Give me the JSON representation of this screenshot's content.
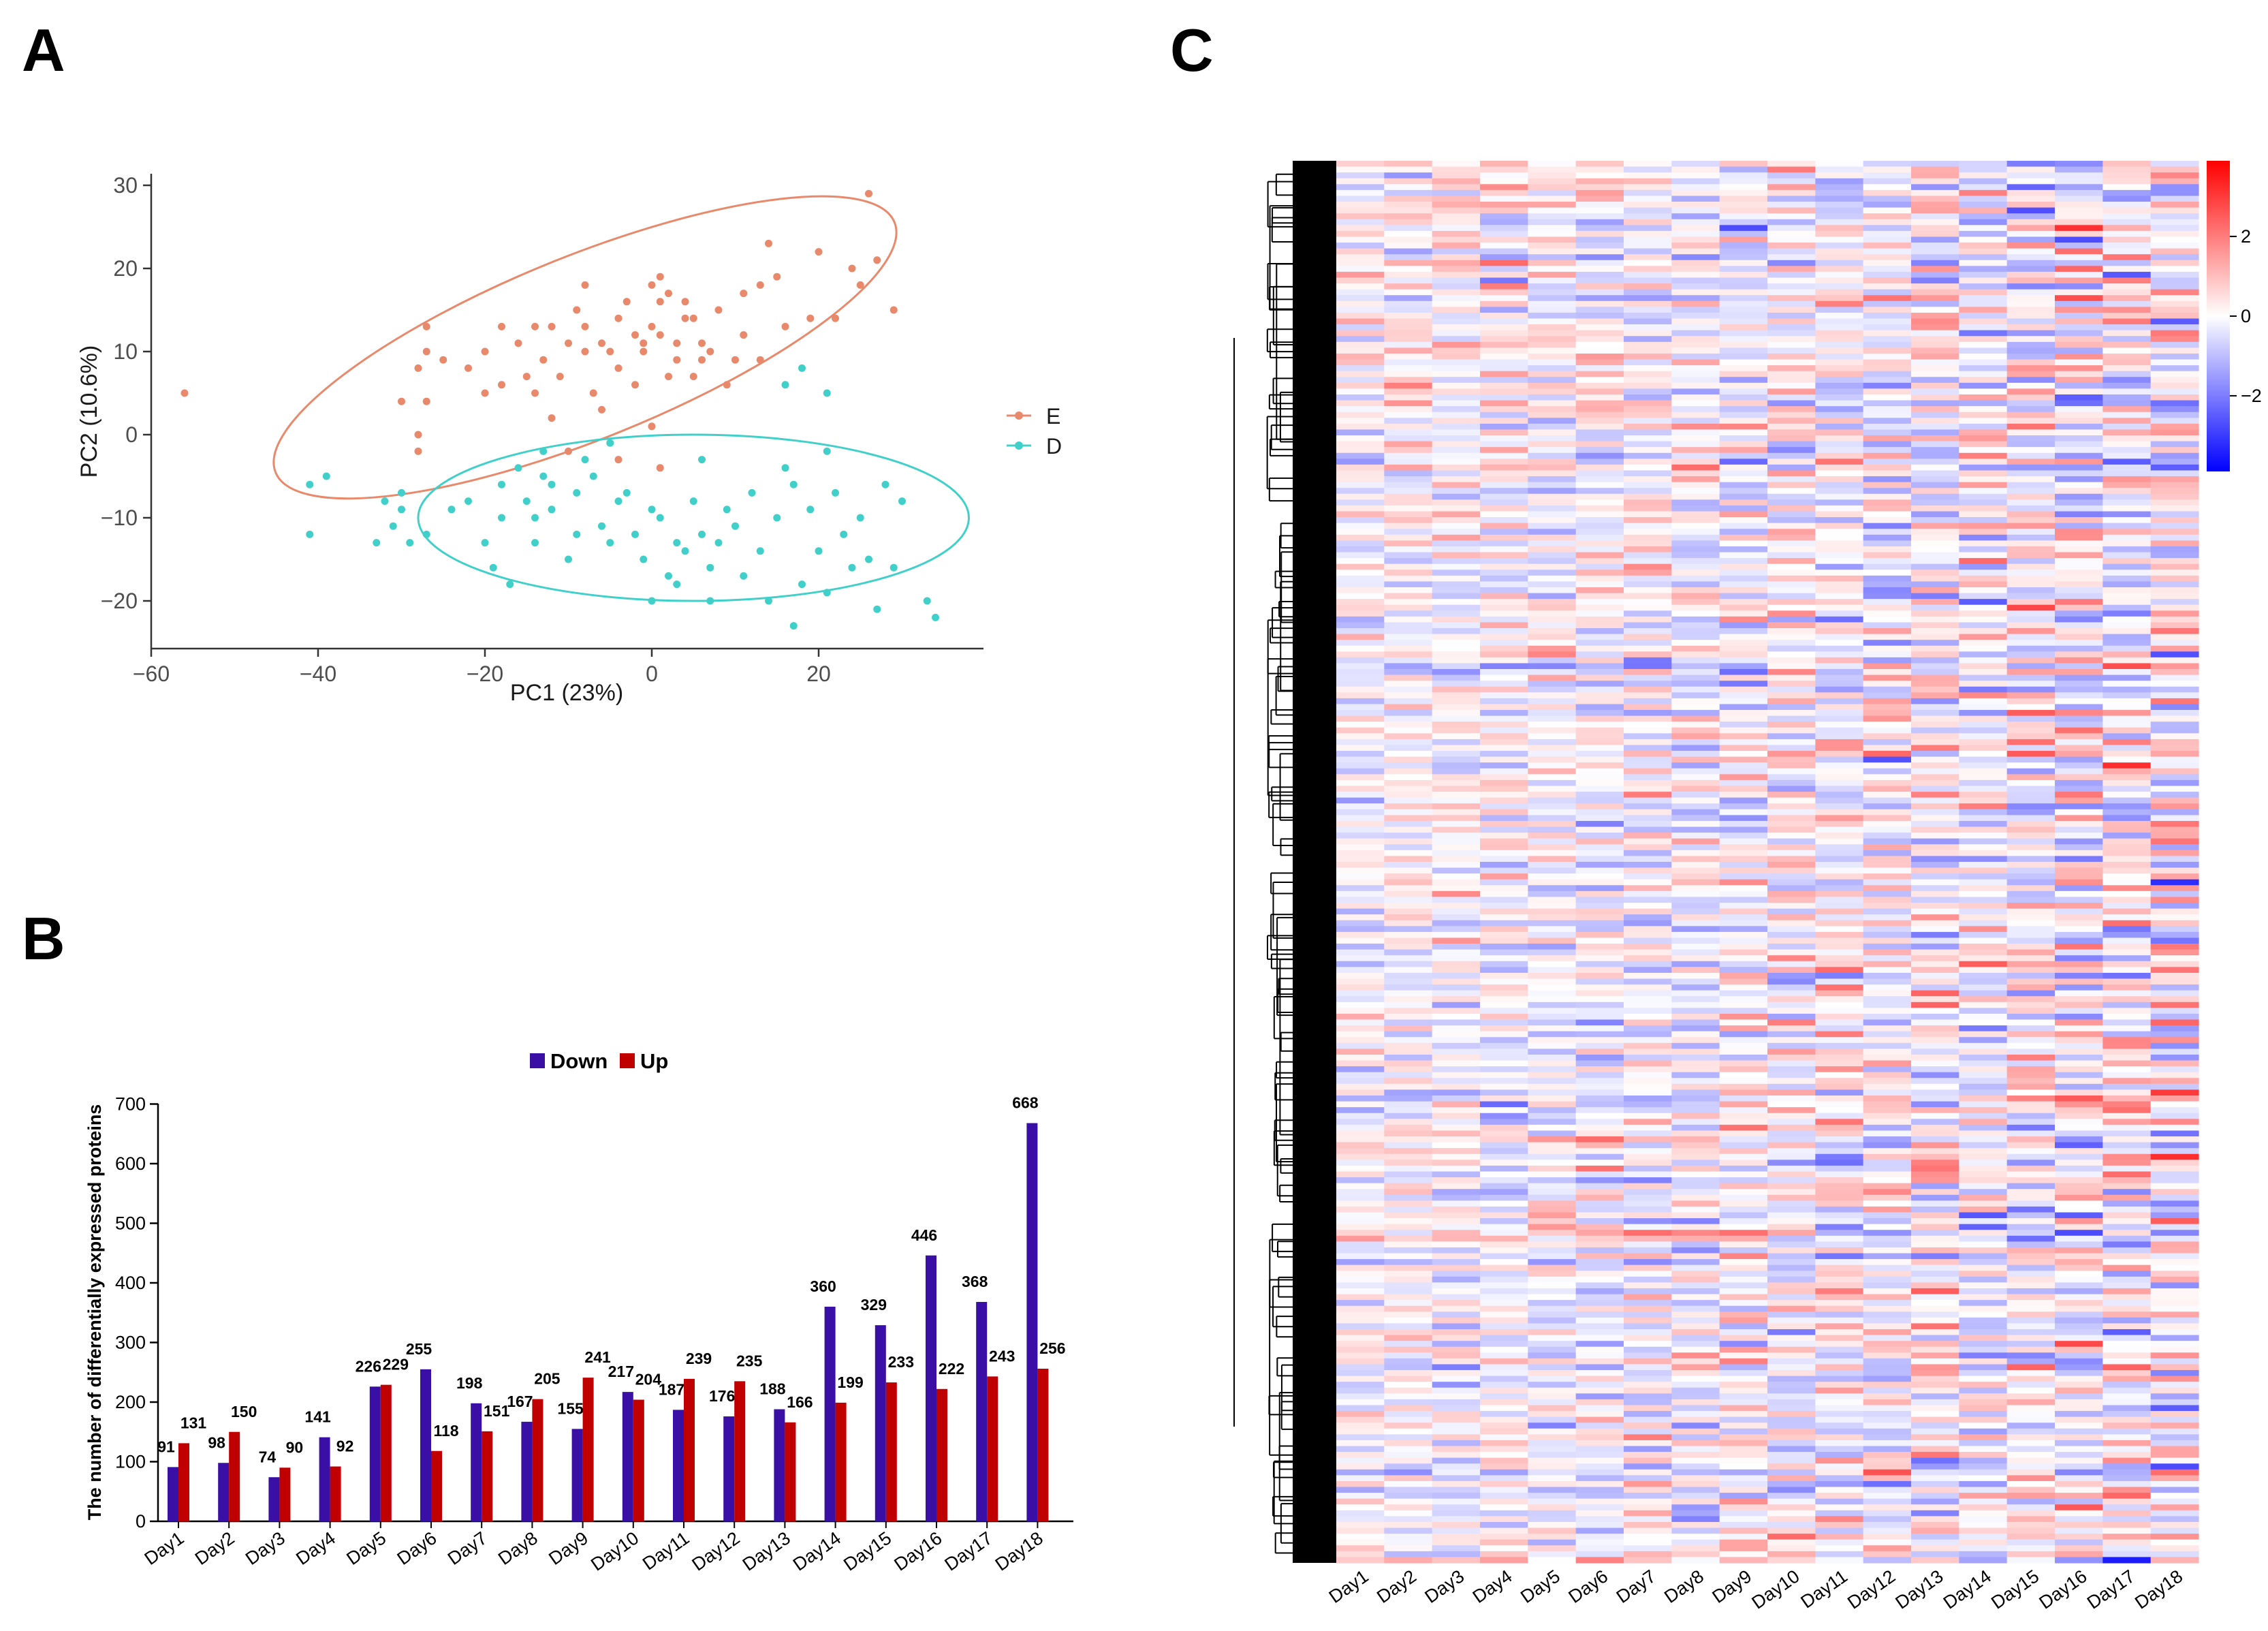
{
  "panels": {
    "a_label": "A",
    "b_label": "B",
    "c_label": "C"
  },
  "chart_data": [
    {
      "panel": "A",
      "type": "scatter",
      "title": "",
      "xlabel": "PC1 (23%)",
      "ylabel": "PC2 (10.6%)",
      "xlim": [
        -60,
        40
      ],
      "ylim": [
        -26,
        31
      ],
      "xticks": [
        -60,
        -40,
        -20,
        0,
        20
      ],
      "yticks": [
        -20,
        -10,
        0,
        10,
        20,
        30
      ],
      "xtick_labels": [
        "−60",
        "−40",
        "−20",
        "0",
        "20"
      ],
      "ytick_labels": [
        "−20",
        "−10",
        "0",
        "10",
        "20",
        "30"
      ],
      "legend_position": "right",
      "series": [
        {
          "name": "E",
          "color": "#E8896C",
          "ellipse": {
            "cx": -8,
            "cy": 10.5,
            "rx": 40,
            "ry": 11,
            "angle_deg": 22
          },
          "points": [
            [
              -56,
              5
            ],
            [
              -28,
              0
            ],
            [
              -28,
              -2
            ],
            [
              -27,
              10
            ],
            [
              -27,
              4
            ],
            [
              -28,
              8
            ],
            [
              -30,
              4
            ],
            [
              -25,
              9
            ],
            [
              -27,
              13
            ],
            [
              -22,
              8
            ],
            [
              -20,
              5
            ],
            [
              -20,
              10
            ],
            [
              -18,
              6
            ],
            [
              -18,
              13
            ],
            [
              -16,
              11
            ],
            [
              -15,
              7
            ],
            [
              -14,
              5
            ],
            [
              -14,
              13
            ],
            [
              -13,
              9
            ],
            [
              -12,
              13
            ],
            [
              -12,
              2
            ],
            [
              -11,
              7
            ],
            [
              -10,
              11
            ],
            [
              -9,
              15
            ],
            [
              -8,
              13
            ],
            [
              -8,
              10
            ],
            [
              -8,
              18
            ],
            [
              -7,
              5
            ],
            [
              -6,
              3
            ],
            [
              -6,
              11
            ],
            [
              -5,
              10
            ],
            [
              -4,
              8
            ],
            [
              -4,
              14
            ],
            [
              -3,
              16
            ],
            [
              -2,
              6
            ],
            [
              -2,
              12
            ],
            [
              -1,
              11
            ],
            [
              -1,
              10
            ],
            [
              0,
              13
            ],
            [
              0,
              18
            ],
            [
              1,
              16
            ],
            [
              1,
              12
            ],
            [
              1,
              19
            ],
            [
              2,
              17
            ],
            [
              2,
              7
            ],
            [
              3,
              11
            ],
            [
              3,
              9
            ],
            [
              4,
              16
            ],
            [
              4,
              14
            ],
            [
              5,
              14
            ],
            [
              5,
              7
            ],
            [
              6,
              11
            ],
            [
              6,
              9
            ],
            [
              7,
              10
            ],
            [
              8,
              15
            ],
            [
              9,
              6
            ],
            [
              10,
              9
            ],
            [
              11,
              17
            ],
            [
              11,
              12
            ],
            [
              13,
              9
            ],
            [
              13,
              18
            ],
            [
              14,
              23
            ],
            [
              15,
              19
            ],
            [
              16,
              13
            ],
            [
              19,
              14
            ],
            [
              20,
              22
            ],
            [
              22,
              14
            ],
            [
              24,
              20
            ],
            [
              25,
              18
            ],
            [
              26,
              29
            ],
            [
              27,
              21
            ],
            [
              29,
              15
            ],
            [
              -10,
              -2
            ],
            [
              -4,
              -3
            ],
            [
              0,
              1
            ],
            [
              1,
              -4
            ]
          ]
        },
        {
          "name": "D",
          "color": "#40D0C9",
          "ellipse": {
            "cx": 5,
            "cy": -10,
            "rx": 33,
            "ry": 10,
            "angle_deg": 0
          },
          "points": [
            [
              -41,
              -6
            ],
            [
              -41,
              -12
            ],
            [
              -39,
              -5
            ],
            [
              -33,
              -13
            ],
            [
              -32,
              -8
            ],
            [
              -31,
              -11
            ],
            [
              -30,
              -7
            ],
            [
              -30,
              -9
            ],
            [
              -29,
              -13
            ],
            [
              -27,
              -12
            ],
            [
              -24,
              -9
            ],
            [
              -22,
              -8
            ],
            [
              -20,
              -13
            ],
            [
              -19,
              -16
            ],
            [
              -18,
              -6
            ],
            [
              -18,
              -10
            ],
            [
              -17,
              -18
            ],
            [
              -16,
              -4
            ],
            [
              -15,
              -8
            ],
            [
              -14,
              -10
            ],
            [
              -14,
              -13
            ],
            [
              -13,
              -2
            ],
            [
              -12,
              -6
            ],
            [
              -12,
              -9
            ],
            [
              -10,
              -15
            ],
            [
              -9,
              -7
            ],
            [
              -9,
              -12
            ],
            [
              -8,
              -3
            ],
            [
              -7,
              -5
            ],
            [
              -6,
              -11
            ],
            [
              -5,
              -13
            ],
            [
              -4,
              -8
            ],
            [
              -3,
              -7
            ],
            [
              -2,
              -12
            ],
            [
              -1,
              -15
            ],
            [
              0,
              -20
            ],
            [
              0,
              -9
            ],
            [
              1,
              -10
            ],
            [
              2,
              -17
            ],
            [
              3,
              -13
            ],
            [
              3,
              -18
            ],
            [
              4,
              -14
            ],
            [
              5,
              -8
            ],
            [
              6,
              -12
            ],
            [
              6,
              -3
            ],
            [
              7,
              -20
            ],
            [
              7,
              -16
            ],
            [
              8,
              -13
            ],
            [
              9,
              -9
            ],
            [
              10,
              -11
            ],
            [
              11,
              -17
            ],
            [
              12,
              -7
            ],
            [
              13,
              -14
            ],
            [
              14,
              -20
            ],
            [
              15,
              -10
            ],
            [
              16,
              -4
            ],
            [
              17,
              -6
            ],
            [
              17,
              -23
            ],
            [
              18,
              -18
            ],
            [
              19,
              -9
            ],
            [
              20,
              -14
            ],
            [
              21,
              -2
            ],
            [
              21,
              -19
            ],
            [
              22,
              -7
            ],
            [
              23,
              -12
            ],
            [
              24,
              -16
            ],
            [
              25,
              -10
            ],
            [
              26,
              -15
            ],
            [
              27,
              -21
            ],
            [
              28,
              -6
            ],
            [
              29,
              -16
            ],
            [
              30,
              -8
            ],
            [
              33,
              -20
            ],
            [
              34,
              -22
            ],
            [
              16,
              6
            ],
            [
              18,
              8
            ],
            [
              21,
              5
            ],
            [
              -5,
              -1
            ],
            [
              -13,
              -5
            ]
          ]
        }
      ]
    },
    {
      "panel": "B",
      "type": "bar",
      "title": "",
      "xlabel": "",
      "ylabel": "The number of differentially expressed proteins",
      "ylim": [
        0,
        700
      ],
      "yticks": [
        0,
        100,
        200,
        300,
        400,
        500,
        600,
        700
      ],
      "legend_position": "top-center",
      "categories": [
        "Day1",
        "Day2",
        "Day3",
        "Day4",
        "Day5",
        "Day6",
        "Day7",
        "Day8",
        "Day9",
        "Day10",
        "Day11",
        "Day12",
        "Day13",
        "Day14",
        "Day15",
        "Day16",
        "Day17",
        "Day18"
      ],
      "series": [
        {
          "name": "Down",
          "color": "#3A0FA6",
          "values": [
            91,
            98,
            74,
            141,
            226,
            255,
            198,
            167,
            155,
            217,
            187,
            176,
            188,
            360,
            329,
            446,
            368,
            668
          ]
        },
        {
          "name": "Up",
          "color": "#C00000",
          "values": [
            131,
            150,
            90,
            92,
            229,
            118,
            151,
            205,
            241,
            204,
            239,
            235,
            166,
            199,
            233,
            222,
            243,
            256
          ]
        }
      ]
    },
    {
      "panel": "C",
      "type": "heatmap",
      "title": "",
      "xlabel": "",
      "ylabel": "",
      "columns": [
        "Day1",
        "Day2",
        "Day3",
        "Day4",
        "Day5",
        "Day6",
        "Day7",
        "Day8",
        "Day9",
        "Day10",
        "Day11",
        "Day12",
        "Day13",
        "Day14",
        "Day15",
        "Day16",
        "Day17",
        "Day18"
      ],
      "color_scale": {
        "min": -3.9,
        "max": 3.9,
        "low": "#0000FF",
        "mid": "#FFFFFF",
        "high": "#FF0000"
      },
      "colorbar_ticks": [
        2,
        0,
        -2
      ],
      "colorbar_tick_labels": [
        "2",
        "0",
        "−2"
      ],
      "row_dendrogram": true
    }
  ]
}
